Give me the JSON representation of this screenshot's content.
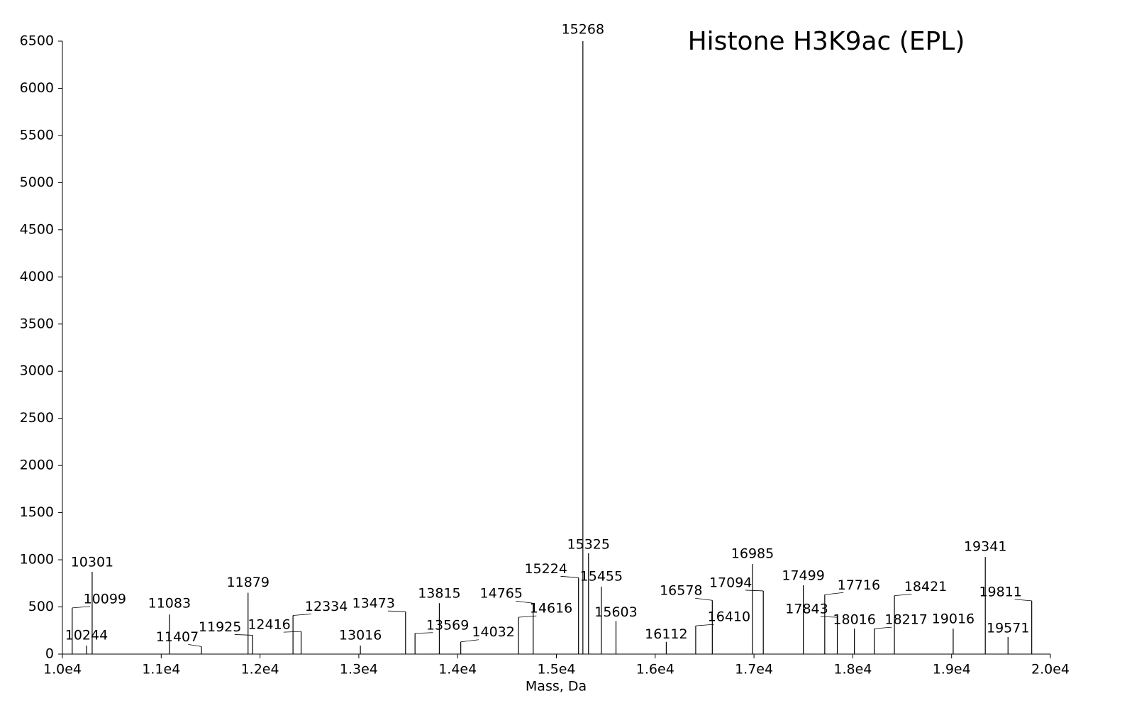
{
  "chart_data": {
    "type": "stick",
    "title": "Histone H3K9ac (EPL)",
    "x_label": "Mass, Da",
    "x": [
      10099,
      10244,
      10301,
      11083,
      11407,
      11879,
      11925,
      12334,
      12416,
      13016,
      13473,
      13569,
      13815,
      14032,
      14616,
      14765,
      15224,
      15268,
      15325,
      15455,
      15603,
      16112,
      16410,
      16578,
      16985,
      17094,
      17499,
      17716,
      17843,
      18016,
      18217,
      18421,
      19016,
      19341,
      19571,
      19811
    ],
    "values": [
      490,
      90,
      873,
      420,
      80,
      650,
      200,
      410,
      240,
      90,
      450,
      220,
      540,
      130,
      390,
      540,
      810,
      6500,
      1070,
      715,
      350,
      130,
      300,
      570,
      955,
      670,
      730,
      630,
      390,
      270,
      270,
      620,
      270,
      1030,
      180,
      565
    ],
    "color": "#000000",
    "xlim": [
      10000,
      20000
    ],
    "xticks": [
      {
        "value": 10000,
        "label": "1.0e4"
      },
      {
        "value": 11000,
        "label": "1.1e4"
      },
      {
        "value": 12000,
        "label": "1.2e4"
      },
      {
        "value": 13000,
        "label": "1.3e4"
      },
      {
        "value": 14000,
        "label": "1.4e4"
      },
      {
        "value": 15000,
        "label": "1.5e4"
      },
      {
        "value": 16000,
        "label": "1.6e4"
      },
      {
        "value": 17000,
        "label": "1.7e4"
      },
      {
        "value": 18000,
        "label": "1.8e4"
      },
      {
        "value": 19000,
        "label": "1.9e4"
      },
      {
        "value": 20000,
        "label": "2.0e4"
      }
    ],
    "ylim": [
      0,
      6500
    ],
    "yticks": [
      0,
      500,
      1000,
      1500,
      2000,
      2500,
      3000,
      3500,
      4000,
      4500,
      5000,
      5500,
      6000,
      6500
    ],
    "grid": false
  }
}
